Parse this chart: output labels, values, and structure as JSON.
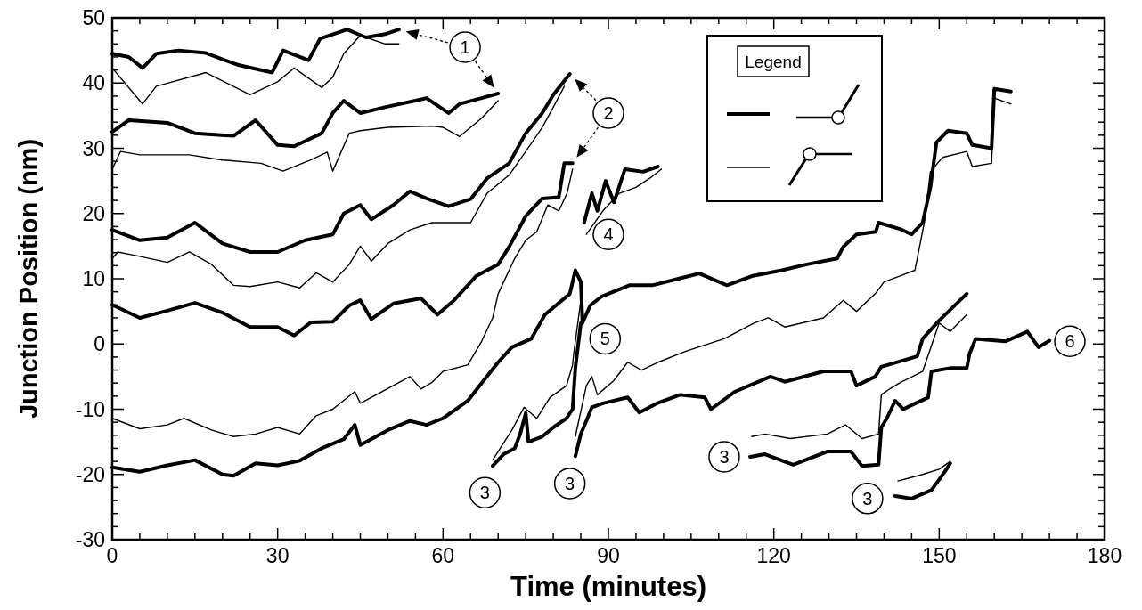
{
  "chart_data": {
    "type": "line",
    "xlabel": "Time (minutes)",
    "ylabel": "Junction Position (nm)",
    "legend_title": "Legend",
    "xlim": [
      0,
      180
    ],
    "ylim": [
      -30,
      50
    ],
    "xticks": [
      0,
      {
        "value": 5,
        "label": null
      },
      {
        "value": 10,
        "label": null
      },
      {
        "value": 15,
        "label": null
      },
      {
        "value": 20,
        "label": null
      },
      {
        "value": 25,
        "label": null
      },
      30,
      {
        "value": 35,
        "label": null
      },
      {
        "value": 40,
        "label": null
      },
      {
        "value": 45,
        "label": null
      },
      {
        "value": 50,
        "label": null
      },
      {
        "value": 55,
        "label": null
      },
      60,
      {
        "value": 65,
        "label": null
      },
      {
        "value": 70,
        "label": null
      },
      {
        "value": 75,
        "label": null
      },
      {
        "value": 80,
        "label": null
      },
      {
        "value": 85,
        "label": null
      },
      90,
      {
        "value": 95,
        "label": null
      },
      {
        "value": 100,
        "label": null
      },
      {
        "value": 105,
        "label": null
      },
      {
        "value": 110,
        "label": null
      },
      {
        "value": 115,
        "label": null
      },
      120,
      {
        "value": 125,
        "label": null
      },
      {
        "value": 130,
        "label": null
      },
      {
        "value": 135,
        "label": null
      },
      {
        "value": 140,
        "label": null
      },
      {
        "value": 145,
        "label": null
      },
      150,
      {
        "value": 155,
        "label": null
      },
      {
        "value": 160,
        "label": null
      },
      {
        "value": 165,
        "label": null
      },
      {
        "value": 170,
        "label": null
      },
      {
        "value": 175,
        "label": null
      },
      180
    ],
    "yticks": [
      -30,
      {
        "value": -28,
        "label": null
      },
      {
        "value": -26,
        "label": null
      },
      {
        "value": -24,
        "label": null
      },
      {
        "value": -22,
        "label": null
      },
      -20,
      {
        "value": -18,
        "label": null
      },
      {
        "value": -16,
        "label": null
      },
      {
        "value": -14,
        "label": null
      },
      {
        "value": -12,
        "label": null
      },
      -10,
      {
        "value": -8,
        "label": null
      },
      {
        "value": -6,
        "label": null
      },
      {
        "value": -4,
        "label": null
      },
      {
        "value": -2,
        "label": null
      },
      0,
      {
        "value": 2,
        "label": null
      },
      {
        "value": 4,
        "label": null
      },
      {
        "value": 6,
        "label": null
      },
      {
        "value": 8,
        "label": null
      },
      10,
      {
        "value": 12,
        "label": null
      },
      {
        "value": 14,
        "label": null
      },
      {
        "value": 16,
        "label": null
      },
      {
        "value": 18,
        "label": null
      },
      20,
      {
        "value": 22,
        "label": null
      },
      {
        "value": 24,
        "label": null
      },
      {
        "value": 26,
        "label": null
      },
      {
        "value": 28,
        "label": null
      },
      30,
      {
        "value": 32,
        "label": null
      },
      {
        "value": 34,
        "label": null
      },
      {
        "value": 36,
        "label": null
      },
      {
        "value": 38,
        "label": null
      },
      40,
      {
        "value": 42,
        "label": null
      },
      {
        "value": 44,
        "label": null
      },
      {
        "value": 46,
        "label": null
      },
      {
        "value": 48,
        "label": null
      },
      50
    ],
    "series": [
      {
        "color": "#000000",
        "x": [
          0,
          3,
          5.5,
          8,
          12,
          17,
          22.7,
          29,
          31,
          35.6,
          37.7,
          42.6,
          46,
          49.5,
          52
        ],
        "values": [
          44.5,
          44,
          42.3,
          44.5,
          45,
          44.6,
          42.8,
          41.6,
          45,
          43.5,
          46.8,
          48.2,
          47,
          47.5,
          48.2
        ]
      },
      {
        "color": "#000000",
        "x": [
          0,
          5.5,
          8,
          17,
          25,
          30,
          33,
          38,
          40,
          42,
          45,
          49.5,
          52
        ],
        "values": [
          42.3,
          36.8,
          39.5,
          41.6,
          38.2,
          40.2,
          42.3,
          39.3,
          40.9,
          44.5,
          47.3,
          46,
          46
        ]
      },
      {
        "color": "#000000",
        "x": [
          0,
          3,
          10,
          15,
          22,
          26,
          30,
          33,
          38,
          40,
          42,
          45,
          50,
          55,
          57,
          61,
          63,
          67,
          70
        ],
        "values": [
          32.5,
          34.3,
          33.9,
          32.3,
          31.9,
          34.3,
          30.5,
          30.3,
          32.3,
          35.4,
          37.3,
          35.4,
          36.4,
          37.3,
          37.7,
          35.4,
          36.8,
          37.7,
          38.4
        ]
      },
      {
        "color": "#000000",
        "x": [
          0,
          1.5,
          5,
          14,
          20,
          27,
          31,
          36,
          39,
          40,
          43,
          45,
          50,
          58,
          60,
          63,
          67,
          70
        ],
        "values": [
          26.8,
          29.5,
          29,
          29,
          28.2,
          27.7,
          26.5,
          28.2,
          29.4,
          26.5,
          32.3,
          32.7,
          33.2,
          33.4,
          33.2,
          31.8,
          34.6,
          37.3
        ]
      },
      {
        "color": "#000000",
        "x": [
          0,
          5,
          10,
          15,
          20,
          25,
          30,
          35,
          40,
          42,
          45,
          47,
          51,
          54,
          57,
          61,
          65,
          68,
          72,
          75,
          78,
          80,
          83
        ],
        "values": [
          17.5,
          15.9,
          16.3,
          18.6,
          15.4,
          14.1,
          14.1,
          15.9,
          16.8,
          20,
          21.3,
          19.1,
          21.3,
          23.4,
          22.3,
          21.1,
          22.2,
          25.4,
          27.7,
          32.3,
          35.4,
          38.2,
          41.4
        ]
      },
      {
        "color": "#000000",
        "x": [
          0,
          1,
          4,
          10,
          14,
          18,
          22,
          25,
          30,
          34,
          37,
          40,
          43,
          45,
          47,
          50,
          54,
          58,
          60,
          65,
          68,
          72,
          75,
          78,
          80,
          82
        ],
        "values": [
          13.1,
          14.1,
          13.6,
          12.5,
          14.1,
          12.2,
          9,
          8.8,
          9.5,
          8.6,
          10.9,
          9.5,
          12.2,
          15,
          12.7,
          15.4,
          17.5,
          18.6,
          18.6,
          18.6,
          23.1,
          25.9,
          29.5,
          33.2,
          36.3,
          39.5
        ]
      },
      {
        "color": "#000000",
        "x": [
          0,
          5,
          10,
          15,
          20,
          25,
          30,
          33,
          36,
          40,
          43,
          45,
          47,
          51,
          56,
          59,
          62,
          66,
          70,
          72,
          75,
          78,
          81,
          82,
          83.5
        ],
        "values": [
          6,
          4,
          5.1,
          6.3,
          4.8,
          2.6,
          2.6,
          1.3,
          3.3,
          3.4,
          5.9,
          6.7,
          3.8,
          6.2,
          7,
          4.5,
          6.7,
          10.4,
          12.2,
          14.9,
          19.6,
          22.3,
          22.5,
          27.7,
          27.7
        ]
      },
      {
        "color": "#000000",
        "x": [
          0,
          5,
          10,
          13,
          18,
          22,
          26,
          30,
          34,
          37,
          40,
          44,
          45,
          49,
          54,
          56,
          58,
          60,
          64.5,
          67,
          69,
          70,
          73,
          75,
          77,
          79,
          81,
          82.5,
          83.5
        ],
        "values": [
          -11.4,
          -13,
          -12.4,
          -11.4,
          -13.2,
          -14.2,
          -13.8,
          -12.8,
          -13.8,
          -11,
          -10,
          -7.3,
          -9.1,
          -7.3,
          -5,
          -6.9,
          -5.9,
          -4.2,
          -3.2,
          0.4,
          4,
          7.7,
          13.1,
          15.9,
          17.2,
          21.3,
          20.4,
          23.1,
          26.8
        ]
      },
      {
        "color": "#000000",
        "x": [
          0,
          5,
          10,
          15,
          20,
          22,
          26,
          30,
          34,
          38,
          42,
          44,
          45,
          50,
          54,
          57,
          60,
          64.5,
          67,
          70,
          72.5,
          76,
          78.5,
          83,
          84,
          85,
          85.3,
          86.7,
          88.8,
          93.8,
          98,
          106.5,
          111.5,
          116,
          121.5,
          126,
          131.5,
          132.6,
          135,
          138.5,
          139,
          143,
          145,
          147,
          148.4,
          149.5,
          151.6,
          155,
          156,
          159.5,
          160,
          163
        ],
        "values": [
          -18.9,
          -19.6,
          -18.6,
          -17.8,
          -20,
          -20.2,
          -18.3,
          -18.6,
          -17.9,
          -16,
          -14.6,
          -12.4,
          -15.5,
          -13.2,
          -11.8,
          -12.4,
          -11.4,
          -8.7,
          -6,
          -2.8,
          -0.5,
          0.8,
          4.5,
          7.7,
          11.3,
          9.5,
          3.2,
          5.9,
          7.3,
          9,
          9,
          10.8,
          9,
          10.4,
          11.3,
          12.2,
          13.1,
          14.9,
          16.8,
          17.2,
          18.6,
          17.6,
          16.8,
          18.6,
          24,
          30.9,
          32.7,
          32.3,
          30.5,
          30,
          39.1,
          38.7
        ]
      },
      {
        "color": "#000000",
        "x": [
          84,
          86,
          87,
          88,
          91,
          93.5,
          96,
          99,
          104.4,
          111,
          116.4,
          119,
          122,
          129,
          132.6,
          135,
          138.4,
          140,
          145.6,
          147.3,
          148.4,
          150.6,
          155,
          156,
          159.5,
          160,
          163
        ],
        "values": [
          -14.2,
          -6.4,
          -5,
          -7.8,
          -5.6,
          -2.8,
          -4,
          -2.8,
          -1,
          0.8,
          3.2,
          4,
          2.6,
          4,
          6.7,
          5,
          7.7,
          9.5,
          11.3,
          18.6,
          26.4,
          28.6,
          29.5,
          27.2,
          27.7,
          37.7,
          36.8
        ]
      },
      {
        "color": "#000000",
        "x": [
          69,
          71,
          73,
          74,
          75,
          75.5,
          78,
          80,
          82.4,
          83.5,
          84,
          85
        ],
        "values": [
          -18.7,
          -16.9,
          -16,
          -13.8,
          -10.6,
          -15,
          -14.2,
          -12.8,
          -11.4,
          -10,
          -3.7,
          3.2
        ]
      },
      {
        "color": "#000000",
        "x": [
          69,
          72.5,
          74.7,
          77,
          79.4,
          82.4,
          83.5,
          83.7,
          85
        ],
        "values": [
          -17.8,
          -13.2,
          -9.7,
          -11.4,
          -8.2,
          -6.4,
          -3.2,
          -1.5,
          6.7
        ]
      },
      {
        "color": "#000000",
        "x": [
          115.7,
          118.4,
          123.5,
          129.7,
          134,
          136,
          139,
          139.5,
          140.5,
          142,
          143.5,
          145.7,
          148,
          148.6,
          152,
          155,
          155.5,
          156.6,
          162,
          166,
          168,
          170
        ],
        "values": [
          -17.3,
          -16.9,
          -18.5,
          -16.5,
          -16.5,
          -18.7,
          -18.5,
          -12.8,
          -11.4,
          -8.7,
          -10,
          -9.1,
          -8.2,
          -4.2,
          -3.7,
          -3.7,
          -1.5,
          0.8,
          0.4,
          1.9,
          -0.5,
          0.5
        ]
      },
      {
        "color": "#000000",
        "x": [
          116,
          118.4,
          123,
          129.7,
          133,
          136,
          139,
          139.5,
          141,
          143,
          147,
          150,
          152,
          155
        ],
        "values": [
          -14.2,
          -13.8,
          -14.5,
          -13.8,
          -12.4,
          -14.5,
          -13.8,
          -7.8,
          -6.9,
          -5.9,
          -4.2,
          3.2,
          1.9,
          4.5
        ]
      },
      {
        "color": "#000000",
        "x": [
          142,
          145,
          148.6,
          151,
          152
        ],
        "values": [
          -23.3,
          -23.7,
          -22.4,
          -19.6,
          -18.3
        ]
      },
      {
        "color": "#000000",
        "x": [
          142.5,
          147,
          150,
          152
        ],
        "values": [
          -21,
          -20,
          -19.2,
          -18
        ]
      },
      {
        "color": "#000000",
        "x": [
          85.6,
          87,
          88,
          89.5,
          91,
          93,
          96.3,
          99
        ],
        "values": [
          18.6,
          23.1,
          20.4,
          25,
          21.7,
          26.8,
          26.4,
          27.2
        ]
      },
      {
        "color": "#000000",
        "x": [
          86,
          89,
          92,
          95,
          97.5,
          99.6
        ],
        "values": [
          16.8,
          20.4,
          23.1,
          24,
          25.4,
          26.8
        ]
      },
      {
        "color": "#000000",
        "x": [
          84,
          85,
          86,
          87,
          89,
          93.5,
          95.6,
          98.8,
          103,
          107.5,
          108.6,
          113,
          119.4,
          122,
          129,
          134,
          135,
          138.4,
          139.5,
          146,
          147,
          150,
          155
        ],
        "values": [
          -17.2,
          -13.8,
          -11.8,
          -9.7,
          -9.1,
          -8.2,
          -10.5,
          -9.1,
          -7.8,
          -8.2,
          -10,
          -7.3,
          -5,
          -5.8,
          -4.2,
          -4.2,
          -6.4,
          -5,
          -3.5,
          -1.9,
          0.8,
          3.6,
          7.7
        ]
      }
    ],
    "annotations": [
      {
        "text": "1",
        "x": 64,
        "y": 45.5
      },
      {
        "text": "2",
        "x": 90,
        "y": 35.4
      },
      {
        "text": "3",
        "x": 67.6,
        "y": -22.8
      },
      {
        "text": "3",
        "x": 83,
        "y": -21.4
      },
      {
        "text": "3",
        "x": 111,
        "y": -17.3
      },
      {
        "text": "3",
        "x": 137,
        "y": -23.7
      },
      {
        "text": "4",
        "x": 90,
        "y": 16.8
      },
      {
        "text": "5",
        "x": 89.4,
        "y": 0.8
      },
      {
        "text": "6",
        "x": 173.7,
        "y": 0.4
      }
    ]
  }
}
